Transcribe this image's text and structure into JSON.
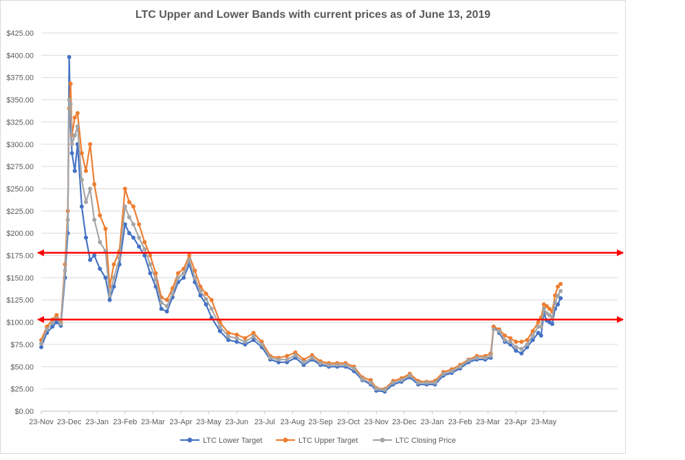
{
  "chart_data": {
    "type": "line",
    "title": "LTC Upper and Lower Bands with current prices as of June 13, 2019",
    "xlabel": "",
    "ylabel": "",
    "ylim": [
      0,
      425
    ],
    "y_ticks": [
      "$0.00",
      "$25.00",
      "$50.00",
      "$75.00",
      "$100.00",
      "$125.00",
      "$150.00",
      "$175.00",
      "$200.00",
      "$225.00",
      "$250.00",
      "$275.00",
      "$300.00",
      "$325.00",
      "$350.00",
      "$375.00",
      "$400.00",
      "$425.00"
    ],
    "x_tick_labels": [
      "23-Nov",
      "23-Dec",
      "23-Jan",
      "23-Feb",
      "23-Mar",
      "23-Apr",
      "23-May",
      "23-Jun",
      "23-Jul",
      "23-Aug",
      "23-Sep",
      "23-Oct",
      "23-Nov",
      "23-Dec",
      "23-Jan",
      "23-Feb",
      "23-Mar",
      "23-Apr",
      "23-May"
    ],
    "x_range_months": [
      0,
      18.7
    ],
    "grid": true,
    "legend_position": "bottom",
    "series": [
      {
        "name": "LTC Lower Target",
        "color": "#4472c4",
        "x": [
          0,
          0.2,
          0.4,
          0.55,
          0.7,
          0.85,
          0.95,
          1.0,
          1.05,
          1.1,
          1.2,
          1.3,
          1.45,
          1.6,
          1.75,
          1.9,
          2.1,
          2.3,
          2.45,
          2.6,
          2.8,
          3.0,
          3.15,
          3.3,
          3.5,
          3.7,
          3.9,
          4.1,
          4.3,
          4.5,
          4.7,
          4.9,
          5.1,
          5.3,
          5.5,
          5.7,
          5.9,
          6.1,
          6.4,
          6.7,
          7.0,
          7.3,
          7.6,
          7.9,
          8.2,
          8.5,
          8.8,
          9.1,
          9.4,
          9.7,
          10.0,
          10.3,
          10.6,
          10.9,
          11.2,
          11.5,
          11.8,
          12.0,
          12.3,
          12.6,
          12.9,
          13.2,
          13.5,
          13.8,
          14.1,
          14.4,
          14.7,
          15.0,
          15.3,
          15.6,
          15.9,
          16.1,
          16.2,
          16.4,
          16.6,
          16.8,
          17.0,
          17.2,
          17.4,
          17.6,
          17.8,
          17.9,
          18.0,
          18.1,
          18.2,
          18.3,
          18.4,
          18.5,
          18.6
        ],
        "values": [
          72,
          88,
          95,
          100,
          96,
          150,
          200,
          398,
          320,
          290,
          270,
          300,
          230,
          195,
          170,
          175,
          160,
          150,
          125,
          140,
          165,
          210,
          200,
          195,
          185,
          175,
          155,
          140,
          115,
          112,
          128,
          145,
          150,
          165,
          145,
          130,
          120,
          105,
          90,
          80,
          78,
          75,
          80,
          72,
          58,
          55,
          55,
          60,
          52,
          58,
          52,
          50,
          50,
          50,
          45,
          35,
          30,
          23,
          22,
          30,
          33,
          38,
          30,
          30,
          30,
          40,
          43,
          48,
          55,
          58,
          58,
          60,
          95,
          88,
          78,
          75,
          68,
          65,
          72,
          80,
          88,
          85,
          110,
          102,
          100,
          98,
          115,
          120,
          127
        ]
      },
      {
        "name": "LTC Upper Target",
        "color": "#ed7d31",
        "x": [
          0,
          0.2,
          0.4,
          0.55,
          0.7,
          0.85,
          0.95,
          1.0,
          1.05,
          1.1,
          1.2,
          1.3,
          1.45,
          1.6,
          1.75,
          1.9,
          2.1,
          2.3,
          2.45,
          2.6,
          2.8,
          3.0,
          3.15,
          3.3,
          3.5,
          3.7,
          3.9,
          4.1,
          4.3,
          4.5,
          4.7,
          4.9,
          5.1,
          5.3,
          5.5,
          5.7,
          5.9,
          6.1,
          6.4,
          6.7,
          7.0,
          7.3,
          7.6,
          7.9,
          8.2,
          8.5,
          8.8,
          9.1,
          9.4,
          9.7,
          10.0,
          10.3,
          10.6,
          10.9,
          11.2,
          11.5,
          11.8,
          12.0,
          12.3,
          12.6,
          12.9,
          13.2,
          13.5,
          13.8,
          14.1,
          14.4,
          14.7,
          15.0,
          15.3,
          15.6,
          15.9,
          16.1,
          16.2,
          16.4,
          16.6,
          16.8,
          17.0,
          17.2,
          17.4,
          17.6,
          17.8,
          17.9,
          18.0,
          18.1,
          18.2,
          18.3,
          18.4,
          18.5,
          18.6
        ],
        "values": [
          80,
          95,
          103,
          108,
          100,
          165,
          225,
          340,
          368,
          310,
          330,
          335,
          290,
          270,
          300,
          255,
          220,
          205,
          140,
          165,
          180,
          250,
          235,
          230,
          210,
          190,
          175,
          155,
          128,
          125,
          138,
          155,
          160,
          175,
          158,
          140,
          132,
          125,
          100,
          88,
          86,
          82,
          88,
          78,
          62,
          60,
          62,
          66,
          58,
          63,
          56,
          54,
          54,
          54,
          50,
          38,
          35,
          26,
          25,
          34,
          37,
          42,
          34,
          33,
          34,
          44,
          47,
          52,
          58,
          62,
          62,
          65,
          95,
          92,
          85,
          82,
          78,
          78,
          80,
          90,
          100,
          105,
          120,
          118,
          115,
          112,
          130,
          140,
          143
        ]
      },
      {
        "name": "LTC Closing Price",
        "color": "#a5a5a5",
        "x": [
          0,
          0.2,
          0.4,
          0.55,
          0.7,
          0.85,
          0.95,
          1.0,
          1.05,
          1.1,
          1.2,
          1.3,
          1.45,
          1.6,
          1.75,
          1.9,
          2.1,
          2.3,
          2.45,
          2.6,
          2.8,
          3.0,
          3.15,
          3.3,
          3.5,
          3.7,
          3.9,
          4.1,
          4.3,
          4.5,
          4.7,
          4.9,
          5.1,
          5.3,
          5.5,
          5.7,
          5.9,
          6.1,
          6.4,
          6.7,
          7.0,
          7.3,
          7.6,
          7.9,
          8.2,
          8.5,
          8.8,
          9.1,
          9.4,
          9.7,
          10.0,
          10.3,
          10.6,
          10.9,
          11.2,
          11.5,
          11.8,
          12.0,
          12.3,
          12.6,
          12.9,
          13.2,
          13.5,
          13.8,
          14.1,
          14.4,
          14.7,
          15.0,
          15.3,
          15.6,
          15.9,
          16.1,
          16.2,
          16.4,
          16.6,
          16.8,
          17.0,
          17.2,
          17.4,
          17.6,
          17.8,
          17.9,
          18.0,
          18.1,
          18.2,
          18.3,
          18.4,
          18.5,
          18.6
        ],
        "values": [
          76,
          92,
          99,
          104,
          98,
          158,
          215,
          350,
          345,
          300,
          310,
          320,
          260,
          235,
          250,
          215,
          190,
          180,
          130,
          150,
          172,
          230,
          218,
          210,
          195,
          182,
          165,
          148,
          122,
          118,
          132,
          150,
          155,
          170,
          150,
          135,
          126,
          115,
          95,
          84,
          82,
          78,
          84,
          75,
          60,
          58,
          58,
          63,
          55,
          60,
          54,
          52,
          52,
          52,
          48,
          36,
          32,
          25,
          24,
          32,
          35,
          40,
          32,
          32,
          32,
          42,
          45,
          50,
          57,
          60,
          60,
          62,
          92,
          90,
          80,
          78,
          72,
          70,
          75,
          85,
          95,
          95,
          115,
          110,
          108,
          105,
          122,
          130,
          135
        ]
      }
    ],
    "reference_lines": [
      {
        "name": "resistance-line",
        "y": 178,
        "color": "#ff0000"
      },
      {
        "name": "support-line",
        "y": 103,
        "color": "#ff0000"
      }
    ]
  }
}
